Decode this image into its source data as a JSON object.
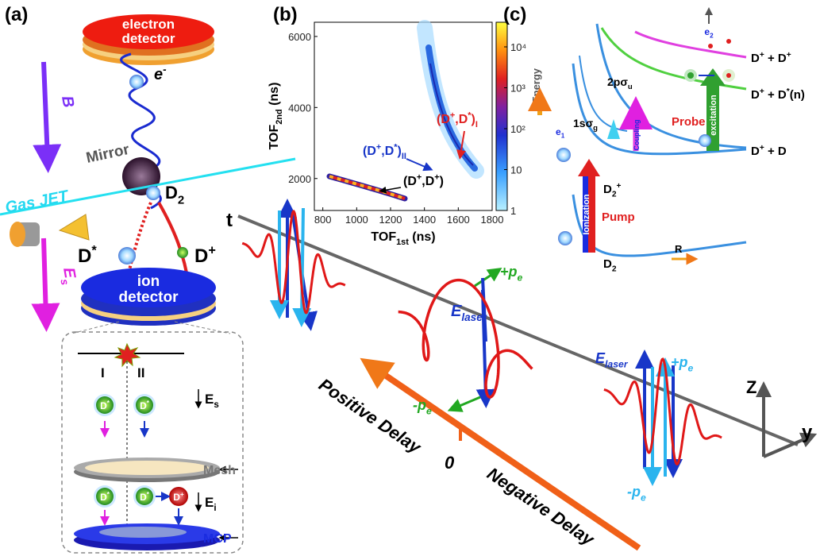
{
  "panel_a": {
    "label": "(a)",
    "electron_detector": [
      "electron",
      "detector"
    ],
    "electron": [
      "e",
      {
        "sup": "-"
      }
    ],
    "magnetic_field": "B",
    "mirror": "Mirror",
    "molecule": [
      "D",
      {
        "sub": "2"
      }
    ],
    "gas_jet": "Gas JET",
    "excited_atom": [
      "D",
      {
        "sup": "*"
      }
    ],
    "ion": [
      "D",
      {
        "sup": "+"
      }
    ],
    "electric_field": [
      "E",
      {
        "sub": "s"
      }
    ],
    "ion_detector": [
      "ion",
      "detector"
    ],
    "inset": {
      "channels": [
        "I",
        "II"
      ],
      "field_s": [
        "E",
        {
          "sub": "s"
        }
      ],
      "badges_top": [
        [
          "D",
          {
            "sup": "*"
          }
        ],
        [
          "D",
          {
            "sup": "*"
          }
        ]
      ],
      "mesh": "Mesh",
      "badges_bottom": [
        [
          "D",
          {
            "sup": "*"
          }
        ],
        [
          "D",
          {
            "sup": "*"
          }
        ],
        [
          "D",
          {
            "sup": "+"
          }
        ]
      ],
      "field_i": [
        "E",
        {
          "sub": "i"
        }
      ],
      "mcp": "MCP"
    }
  },
  "panel_b": {
    "label": "(b)",
    "x_label": [
      "TOF",
      {
        "sub": "1st"
      },
      " (ns)"
    ],
    "y_label": [
      "TOF",
      {
        "sub": "2nd"
      },
      " (ns)"
    ],
    "xlim": [
      750,
      1800
    ],
    "xticks": [
      800,
      1000,
      1200,
      1400,
      1600,
      1800
    ],
    "ylim": [
      1100,
      6400
    ],
    "yticks": [
      2000,
      4000,
      6000
    ],
    "colorbar": {
      "scale": "log",
      "lim": [
        1,
        40000
      ],
      "ticks": [
        1,
        10,
        {
          "value": 100,
          "label": "10²"
        },
        {
          "value": 1000,
          "label": "10³"
        },
        {
          "value": 10000,
          "label": "10⁴"
        }
      ]
    },
    "channel_I": [
      "(D",
      {
        "sup": "+"
      },
      ",D",
      {
        "sup": "*"
      },
      ")",
      {
        "sub": "I"
      }
    ],
    "channel_II": [
      "(D",
      {
        "sup": "+"
      },
      ",D",
      {
        "sup": "*"
      },
      ")",
      {
        "sub": "II"
      }
    ],
    "coincidence": [
      "(D",
      {
        "sup": "+"
      },
      ",D",
      {
        "sup": "+"
      },
      ")"
    ]
  },
  "panel_c": {
    "label": "(c)",
    "energy": "Energy",
    "electron_2": [
      "e",
      {
        "sub": "2"
      }
    ],
    "dissociation_2": [
      "D",
      {
        "sup": "+"
      },
      " + D",
      {
        "sup": "+"
      }
    ],
    "state_2p": [
      "2pσ",
      {
        "sub": "u"
      }
    ],
    "state_1s": [
      "1sσ",
      {
        "sub": "g"
      }
    ],
    "coupling": "Coupling",
    "probe": "Probe",
    "excitation": "excitation",
    "dissociation_excited": [
      "D",
      {
        "sup": "+"
      },
      " + D",
      {
        "sup": "*"
      },
      "(n)"
    ],
    "dissociation_1": [
      "D",
      {
        "sup": "+"
      },
      " + D"
    ],
    "electron_1": [
      "e",
      {
        "sub": "1"
      }
    ],
    "ion_state": [
      "D",
      {
        "sub": "2"
      },
      {
        "sup": "+"
      }
    ],
    "ionization": "Ionization",
    "pump": "Pump",
    "ground": [
      "D",
      {
        "sub": "2"
      }
    ],
    "coordinate": "R"
  },
  "main": {
    "time_axis": "t",
    "pe_plus": [
      "+p",
      {
        "sub": "e"
      }
    ],
    "e_laser": [
      "E",
      {
        "sub": "laser"
      }
    ],
    "pe_minus": [
      "-p",
      {
        "sub": "e"
      }
    ],
    "positive_delay": "Positive Delay",
    "zero": "0",
    "negative_delay": "Negative Delay",
    "e_laser_right": [
      "E",
      {
        "sub": "laser"
      }
    ],
    "pe_plus_right": [
      "+p",
      {
        "sub": "e"
      }
    ],
    "pe_minus_right": [
      "-p",
      {
        "sub": "e"
      }
    ],
    "z_axis": "Z",
    "y_axis": "y"
  }
}
